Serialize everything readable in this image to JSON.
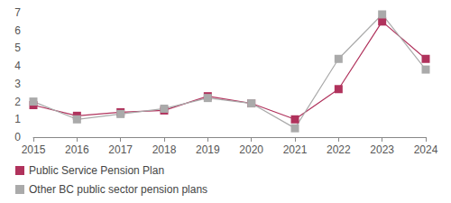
{
  "chart_data": {
    "type": "line",
    "categories": [
      "2015",
      "2016",
      "2017",
      "2018",
      "2019",
      "2020",
      "2021",
      "2022",
      "2023",
      "2024"
    ],
    "series": [
      {
        "name": "Public Service Pension Plan",
        "color": "#b0325c",
        "marker": "square",
        "values": [
          1.8,
          1.2,
          1.4,
          1.5,
          2.3,
          1.9,
          1.0,
          2.7,
          6.5,
          4.4
        ]
      },
      {
        "name": "Other BC public sector pension plans",
        "color": "#aaaaaa",
        "marker": "square",
        "values": [
          2.0,
          1.0,
          1.3,
          1.6,
          2.2,
          1.9,
          0.5,
          4.4,
          6.9,
          3.8
        ]
      }
    ],
    "ylim": [
      0,
      7
    ],
    "yticks": [
      0,
      1,
      2,
      3,
      4,
      5,
      6,
      7
    ],
    "grid": false,
    "legend": "bottom-left"
  }
}
